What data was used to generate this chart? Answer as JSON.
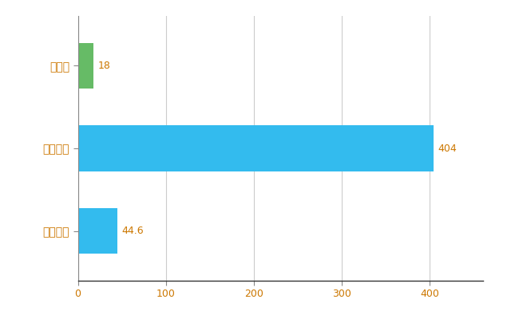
{
  "categories": [
    "全国平均",
    "全国最大",
    "群馬県"
  ],
  "values": [
    44.6,
    404,
    18
  ],
  "bar_colors": [
    "#33bbee",
    "#33bbee",
    "#66bb66"
  ],
  "value_labels": [
    "44.6",
    "404",
    "18"
  ],
  "xlim": [
    0,
    460
  ],
  "xticks": [
    0,
    100,
    200,
    300,
    400
  ],
  "background_color": "#ffffff",
  "grid_color": "#cccccc",
  "label_color": "#cc7700",
  "tick_color": "#cc7700",
  "bar_height": 0.55,
  "figsize": [
    6.5,
    4.0
  ],
  "dpi": 100
}
